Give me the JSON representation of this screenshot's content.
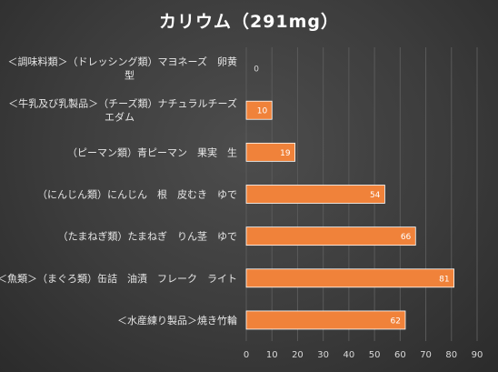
{
  "chart_data": {
    "type": "bar",
    "orientation": "horizontal",
    "title": "カリウム（291mg）",
    "categories": [
      [
        "＜調味料類＞（ドレッシング類）マヨネーズ　卵黄",
        "型"
      ],
      [
        "＜牛乳及び乳製品＞（チーズ類）ナチュラルチーズ",
        "エダム"
      ],
      [
        "（ピーマン類）青ピーマン　果実　生"
      ],
      [
        "（にんじん類）にんじん　根　皮むき　ゆで"
      ],
      [
        "（たまねぎ類）たまねぎ　りん茎　ゆで"
      ],
      [
        "＜魚類＞（まぐろ類）缶詰　油漬　フレーク　ライト"
      ],
      [
        "＜水産練り製品＞焼き竹輪"
      ]
    ],
    "values": [
      0,
      10,
      19,
      54,
      66,
      81,
      62
    ],
    "xlim": [
      0,
      90
    ],
    "xticks": [
      "0",
      "10",
      "20",
      "30",
      "40",
      "50",
      "60",
      "70",
      "80",
      "90"
    ],
    "grid": true,
    "legend": "none",
    "colors": {
      "bar": "#f0823a",
      "background": "#3a3a3a",
      "text": "#e6e6e6"
    }
  }
}
